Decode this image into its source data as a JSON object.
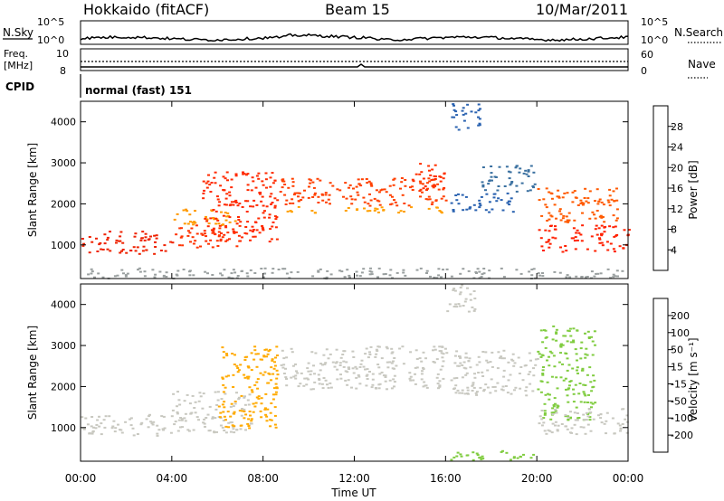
{
  "header": {
    "station": "Hokkaido (fitACF)",
    "beam": "Beam 15",
    "date": "10/Mar/2011"
  },
  "noise_panel": {
    "left_label": "N.Sky",
    "right_label": "N.Search",
    "scale_top": "10^5",
    "scale_bottom": "10^0"
  },
  "freq_panel": {
    "left_label_1": "Freq.",
    "left_label_2": "[MHz]",
    "right_label": "Nave",
    "left_top": "10",
    "left_bottom": "8",
    "right_top": "60",
    "right_bottom": "0"
  },
  "cpid_panel": {
    "label": "CPID",
    "mode": "normal (fast) 151"
  },
  "chart_data": [
    {
      "type": "heatmap",
      "panel": "power",
      "ylabel": "Slant Range [km]",
      "ylim": [
        180,
        4500
      ],
      "y_ticks": [
        1000,
        2000,
        3000,
        4000
      ],
      "xlim_hours": [
        0,
        24
      ],
      "colorbar_label": "Power [dB]",
      "colorbar_ticks": [
        "28",
        "24",
        "20",
        "16",
        "12",
        "8",
        "4"
      ],
      "colorbar_colors": [
        "#ff0000",
        "#ff4400",
        "#ff7a00",
        "#ffa100",
        "#e8c000",
        "#98c040",
        "#4a9c70",
        "#2a6a8a",
        "#2030b0",
        "#0000ff"
      ],
      "regions": [
        {
          "t": [
            0.0,
            4.0
          ],
          "r": [
            800,
            1350
          ],
          "color": "#ee2200"
        },
        {
          "t": [
            4.0,
            7.0
          ],
          "r": [
            950,
            1500
          ],
          "color": "#ff3300"
        },
        {
          "t": [
            4.0,
            7.0
          ],
          "r": [
            1500,
            1900
          ],
          "color": "#ff9900"
        },
        {
          "t": [
            5.3,
            8.6
          ],
          "r": [
            1100,
            2800
          ],
          "color": "#ff2a00"
        },
        {
          "t": [
            8.7,
            16.0
          ],
          "r": [
            1950,
            2650
          ],
          "color": "#ff4000"
        },
        {
          "t": [
            8.7,
            16.0
          ],
          "r": [
            1800,
            1950
          ],
          "color": "#ffa000"
        },
        {
          "t": [
            14.5,
            16.0
          ],
          "r": [
            2300,
            3000
          ],
          "color": "#ff3000"
        },
        {
          "t": [
            16.2,
            19.0
          ],
          "r": [
            1800,
            2300
          ],
          "color": "#2a62b0"
        },
        {
          "t": [
            16.2,
            17.5
          ],
          "r": [
            3800,
            4500
          ],
          "color": "#2a62b0"
        },
        {
          "t": [
            17.5,
            20.0
          ],
          "r": [
            2300,
            2950
          ],
          "color": "#3a70a0"
        },
        {
          "t": [
            20.0,
            24.0
          ],
          "r": [
            850,
            1500
          ],
          "color": "#ff2000"
        },
        {
          "t": [
            20.0,
            23.5
          ],
          "r": [
            1500,
            2400
          ],
          "color": "#ff5a00"
        },
        {
          "t": [
            0.0,
            24.0
          ],
          "r": [
            200,
            450
          ],
          "color": "#9aa0a0"
        }
      ]
    },
    {
      "type": "heatmap",
      "panel": "velocity",
      "ylabel": "Slant Range [km]",
      "ylim": [
        180,
        4500
      ],
      "y_ticks": [
        1000,
        2000,
        3000,
        4000
      ],
      "xlim_hours": [
        0,
        24
      ],
      "xlabel": "Time UT",
      "x_ticks": [
        "00:00",
        "04:00",
        "08:00",
        "12:00",
        "16:00",
        "20:00",
        "00:00"
      ],
      "colorbar_label": "Velocity [m s⁻¹]",
      "colorbar_ticks": [
        "200",
        "100",
        "50",
        "15",
        "-15",
        "-50",
        "-100",
        "-200"
      ],
      "colorbar_colors": [
        "#0000c8",
        "#2050a0",
        "#40a050",
        "#80cc40",
        "#c8c8c0",
        "#c8c8c0",
        "#ffcc00",
        "#ff9900",
        "#ff5500",
        "#ff0000"
      ],
      "regions": [
        {
          "t": [
            0.0,
            4.0
          ],
          "r": [
            800,
            1350
          ],
          "color": "#c8c8c0"
        },
        {
          "t": [
            4.0,
            7.5
          ],
          "r": [
            900,
            1900
          ],
          "color": "#c8c8c0"
        },
        {
          "t": [
            6.0,
            8.6
          ],
          "r": [
            1000,
            3000
          ],
          "color": "#ffaa00"
        },
        {
          "t": [
            8.7,
            16.0
          ],
          "r": [
            1950,
            3000
          ],
          "color": "#c8c8c0"
        },
        {
          "t": [
            16.0,
            17.3
          ],
          "r": [
            3800,
            4500
          ],
          "color": "#c8c8c0"
        },
        {
          "t": [
            16.2,
            20.0
          ],
          "r": [
            1800,
            2900
          ],
          "color": "#c8c8c0"
        },
        {
          "t": [
            20.0,
            22.5
          ],
          "r": [
            1200,
            3500
          ],
          "color": "#80cc40"
        },
        {
          "t": [
            20.0,
            24.0
          ],
          "r": [
            850,
            1500
          ],
          "color": "#c8c8c0"
        },
        {
          "t": [
            16.0,
            20.0
          ],
          "r": [
            200,
            450
          ],
          "color": "#80cc40"
        }
      ]
    }
  ]
}
